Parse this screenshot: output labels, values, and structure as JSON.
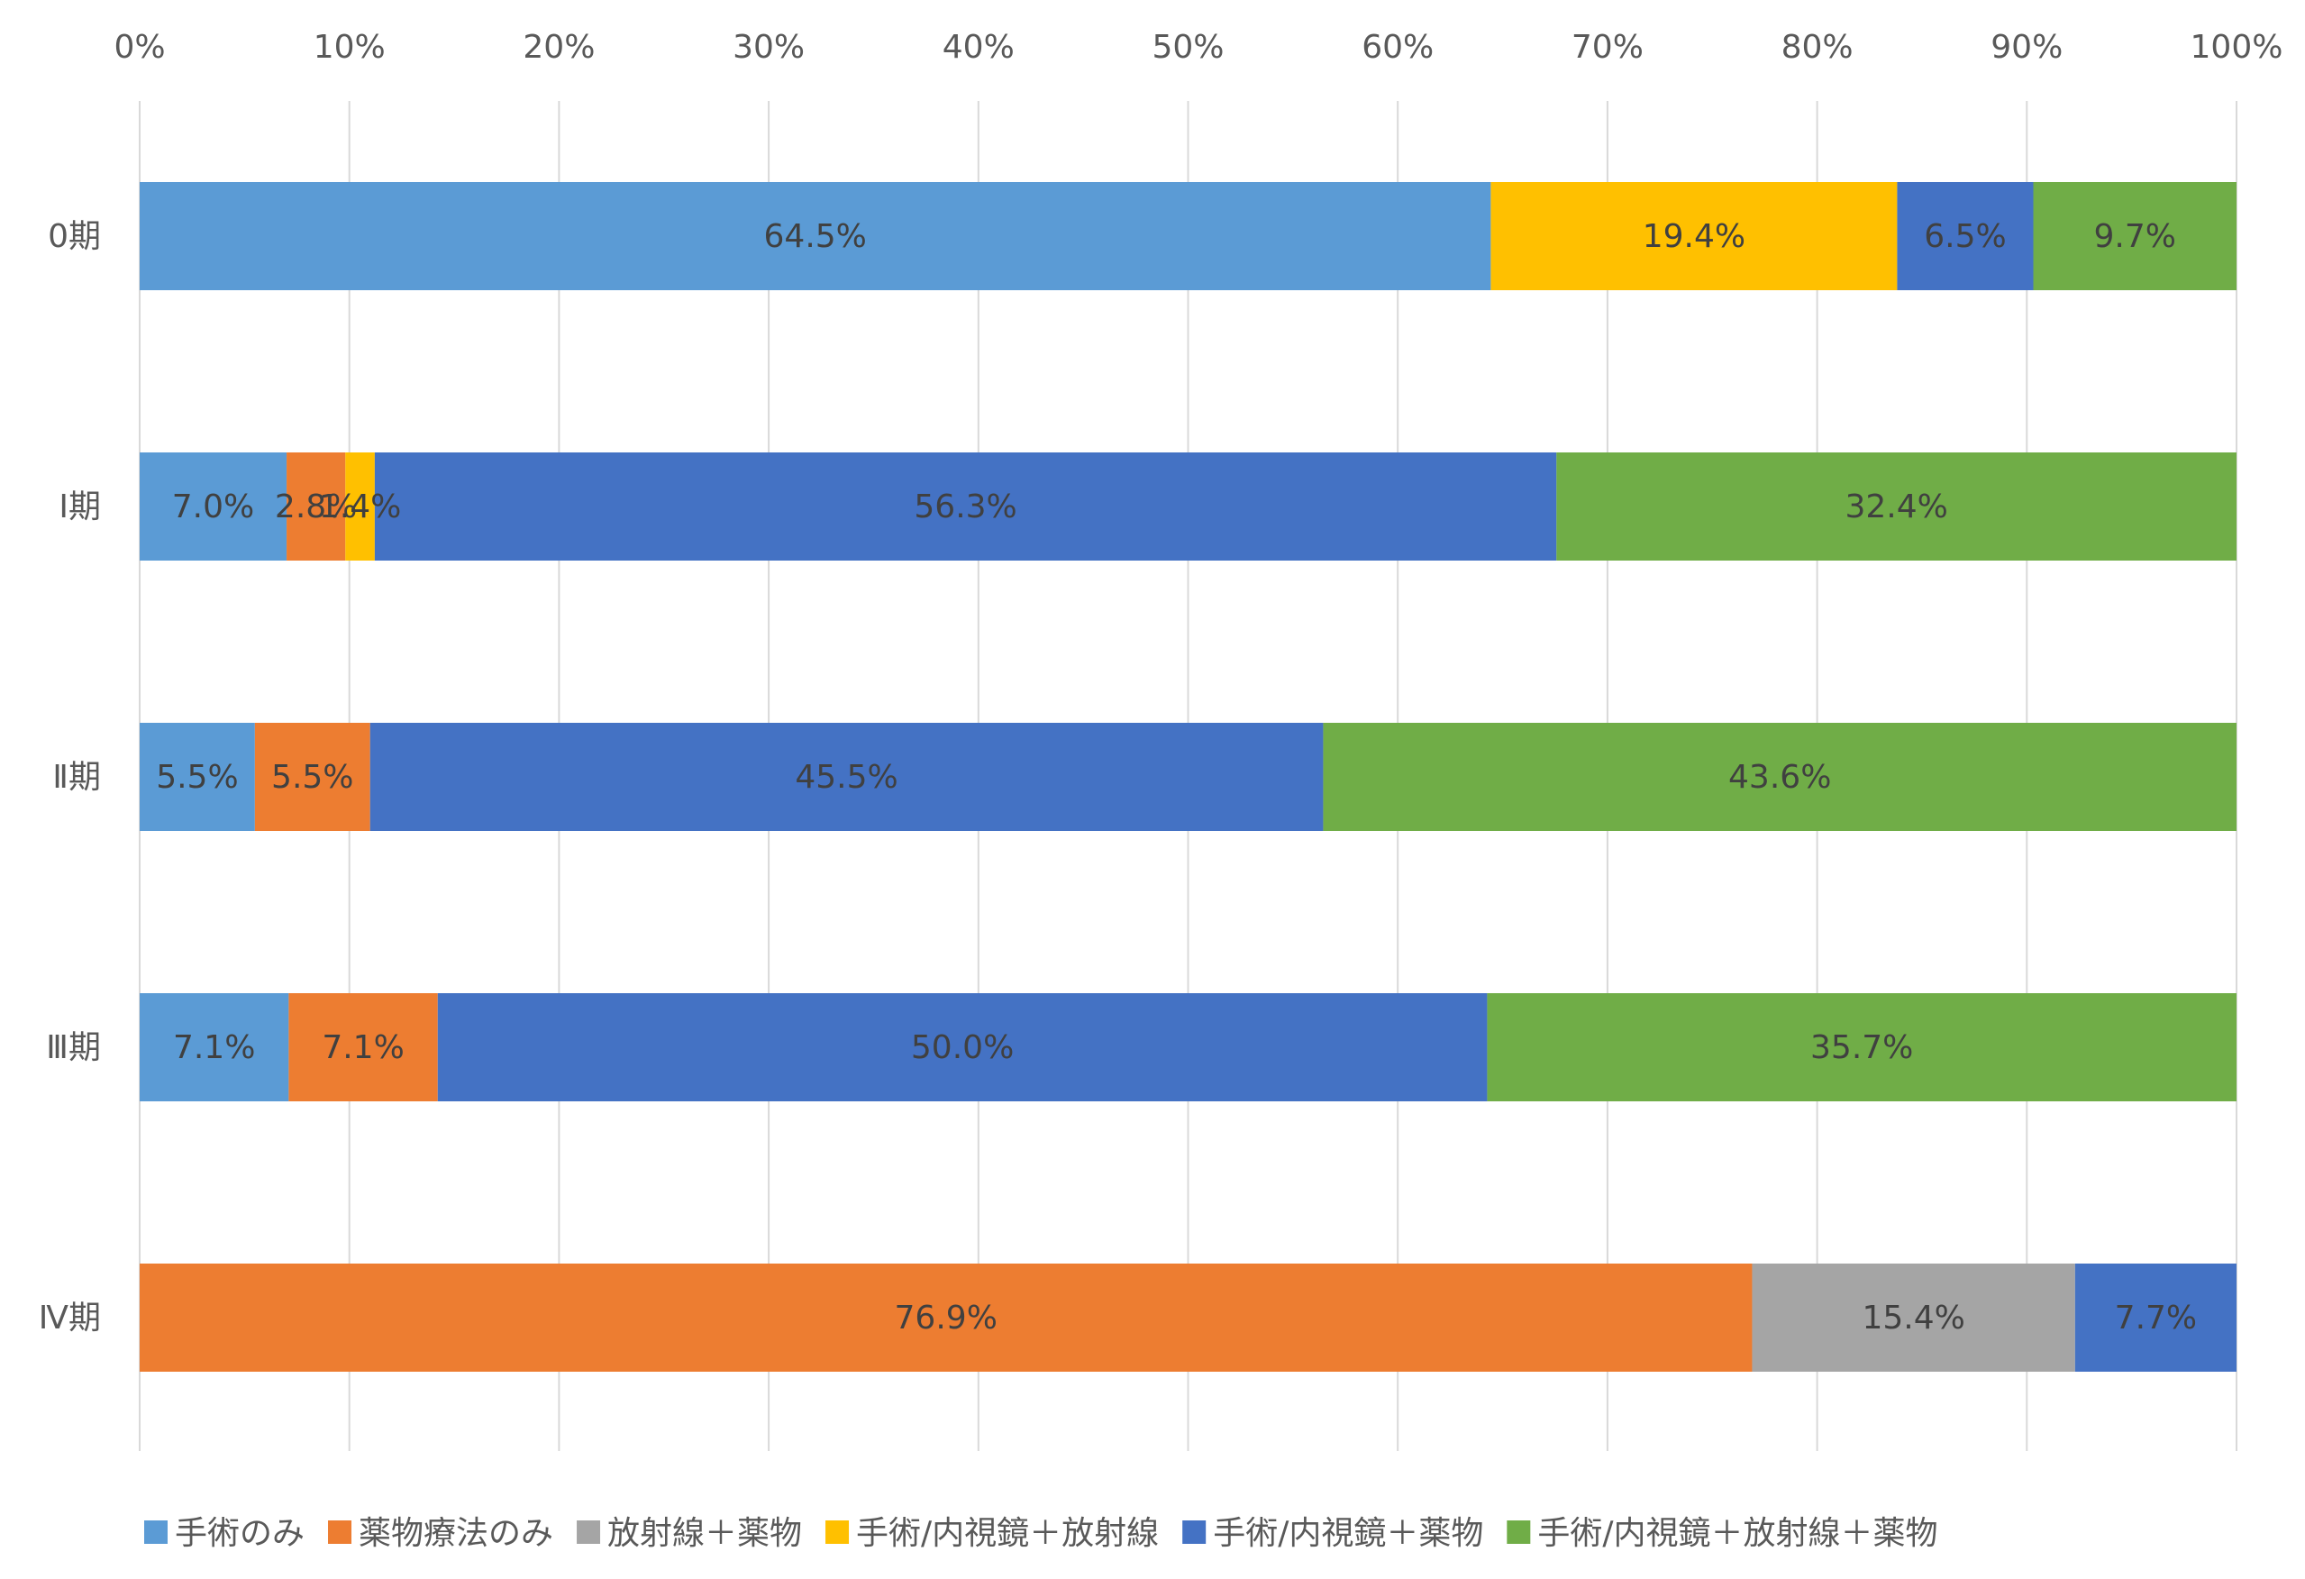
{
  "chart_data": {
    "type": "bar",
    "orientation": "horizontal",
    "stacked": "percent",
    "categories": [
      "0期",
      "Ⅰ期",
      "Ⅱ期",
      "Ⅲ期",
      "Ⅳ期"
    ],
    "x_ticks": [
      "0%",
      "10%",
      "20%",
      "30%",
      "40%",
      "50%",
      "60%",
      "70%",
      "80%",
      "90%",
      "100%"
    ],
    "xlim": [
      0,
      100
    ],
    "x_axis_position": "top",
    "grid": true,
    "legend_position": "bottom",
    "series": [
      {
        "name": "手術のみ",
        "color": "#5B9BD5",
        "values": [
          64.5,
          7.0,
          5.5,
          7.1,
          null
        ],
        "labels": [
          "64.5%",
          "7.0%",
          "5.5%",
          "7.1%",
          ""
        ]
      },
      {
        "name": "薬物療法のみ",
        "color": "#ED7D31",
        "values": [
          null,
          2.8,
          5.5,
          7.1,
          76.9
        ],
        "labels": [
          "",
          "2.8%",
          "5.5%",
          "7.1%",
          "76.9%"
        ]
      },
      {
        "name": "放射線＋薬物",
        "color": "#A5A5A5",
        "values": [
          null,
          null,
          null,
          null,
          15.4
        ],
        "labels": [
          "",
          "",
          "",
          "",
          "15.4%"
        ]
      },
      {
        "name": "手術/内視鏡＋放射線",
        "color": "#FFC000",
        "values": [
          19.4,
          1.4,
          null,
          null,
          null
        ],
        "labels": [
          "19.4%",
          "1.4%",
          "",
          "",
          ""
        ]
      },
      {
        "name": "手術/内視鏡＋薬物",
        "color": "#4472C4",
        "values": [
          6.5,
          56.3,
          45.5,
          50.0,
          7.7
        ],
        "labels": [
          "6.5%",
          "56.3%",
          "45.5%",
          "50.0%",
          "7.7%"
        ]
      },
      {
        "name": "手術/内視鏡＋放射線＋薬物",
        "color": "#70AD47",
        "values": [
          9.7,
          32.4,
          43.6,
          35.7,
          null
        ],
        "labels": [
          "9.7%",
          "32.4%",
          "43.6%",
          "35.7%",
          ""
        ]
      }
    ]
  }
}
